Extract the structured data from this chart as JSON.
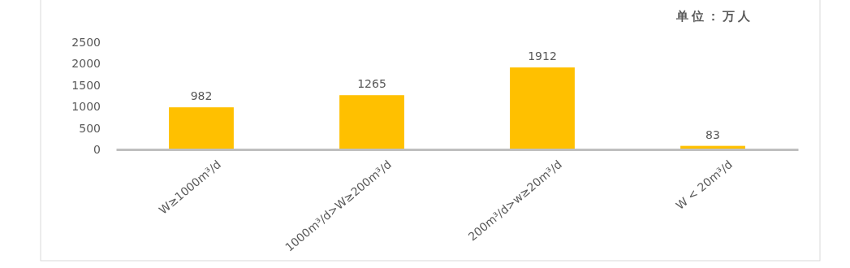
{
  "chart_data": {
    "type": "bar",
    "annotations": [
      "单位：万人"
    ],
    "categories": [
      "W≥1000m³/d",
      "1000m³/d>W≥200m³/d",
      "200m³/d>w≥20m³/d",
      "W < 20m³/d"
    ],
    "values": [
      982,
      1265,
      1912,
      83
    ],
    "color": "#ffc000",
    "ylim": [
      0,
      2500
    ],
    "yticks": [
      0,
      500,
      1000,
      1500,
      2000,
      2500
    ],
    "data_labels": true,
    "grid": false
  }
}
